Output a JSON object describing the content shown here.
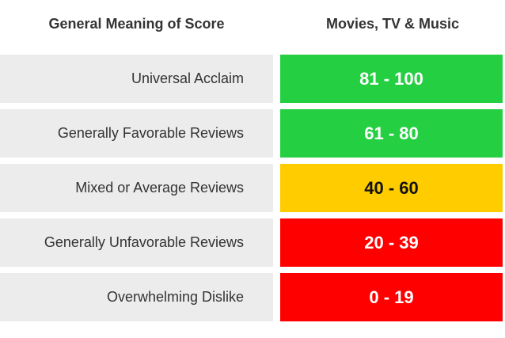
{
  "header": {
    "left": "General Meaning of Score",
    "right": "Movies, TV & Music"
  },
  "rows": [
    {
      "label": "Universal Acclaim",
      "range": "81 - 100",
      "color": "#24d042",
      "text_color": "#ffffff"
    },
    {
      "label": "Generally Favorable Reviews",
      "range": "61 - 80",
      "color": "#24d042",
      "text_color": "#ffffff"
    },
    {
      "label": "Mixed or Average Reviews",
      "range": "40 - 60",
      "color": "#ffcc00",
      "text_color": "#111111"
    },
    {
      "label": "Generally Unfavorable Reviews",
      "range": "20 - 39",
      "color": "#ff0000",
      "text_color": "#ffffff"
    },
    {
      "label": "Overwhelming Dislike",
      "range": "0 - 19",
      "color": "#ff0000",
      "text_color": "#ffffff"
    }
  ]
}
